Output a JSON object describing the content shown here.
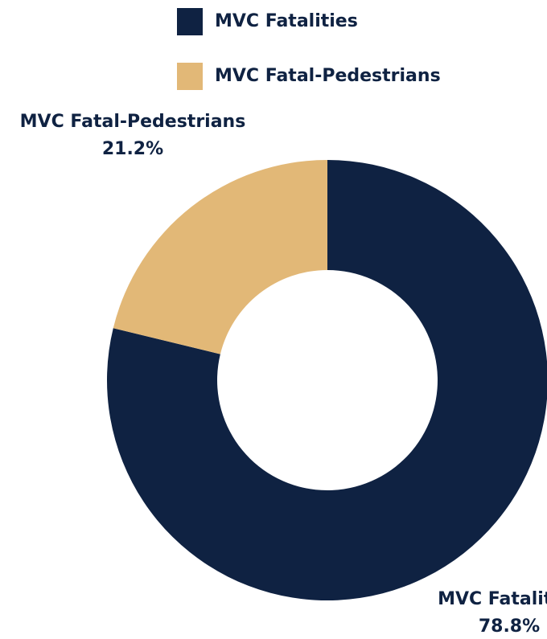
{
  "chart_data": {
    "type": "donut",
    "categories": [
      "MVC Fatalities",
      "MVC Fatal-Pedestrians"
    ],
    "values": [
      78.8,
      21.2
    ],
    "value_labels": [
      "78.8%",
      "21.2%"
    ],
    "colors": [
      "#0f2242",
      "#e2b877"
    ],
    "legend": "top"
  }
}
